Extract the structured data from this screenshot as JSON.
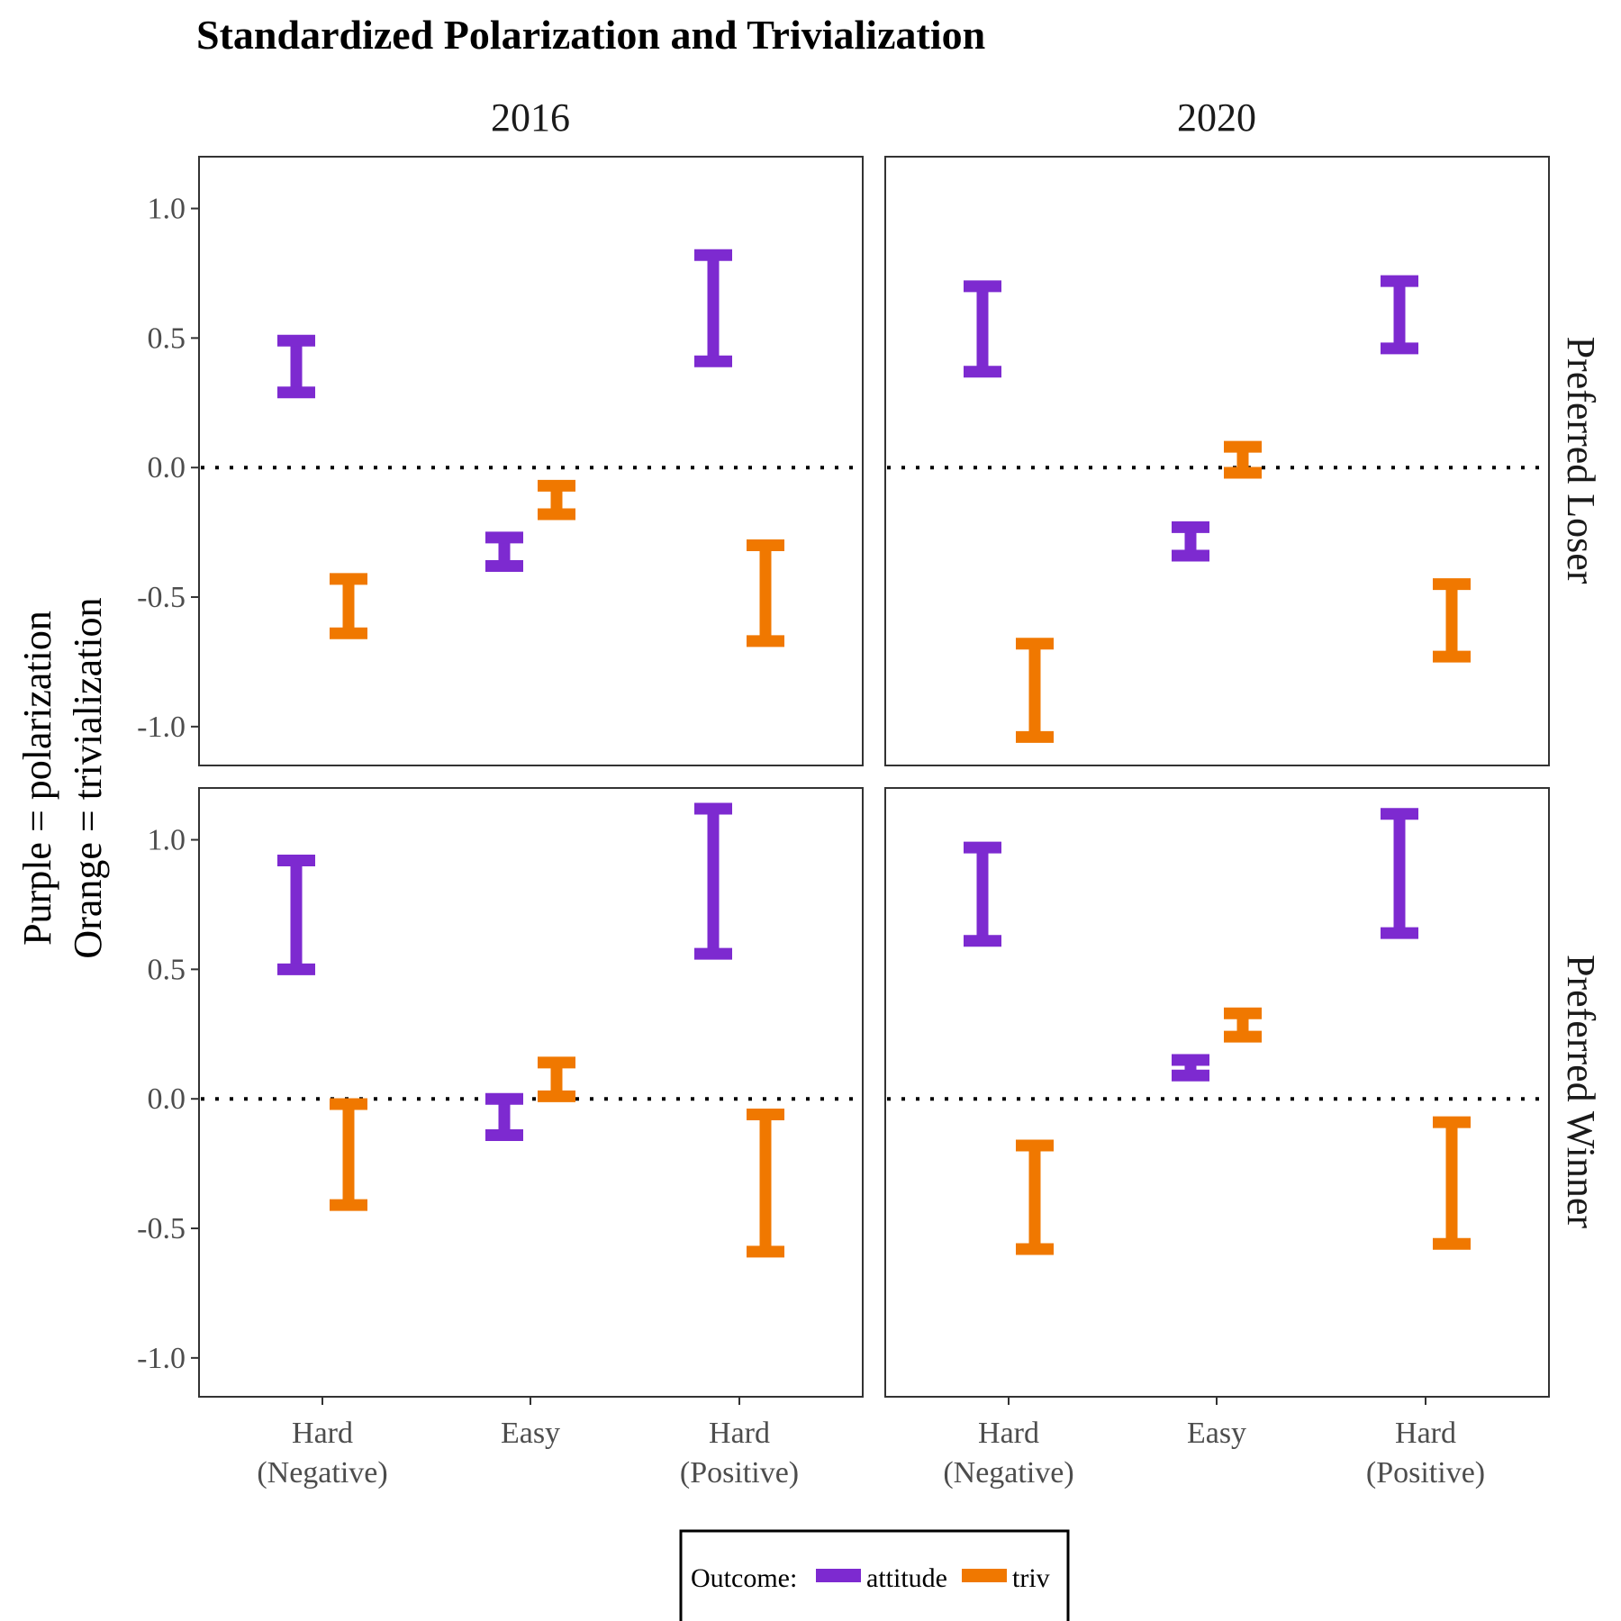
{
  "chart_data": {
    "type": "errorbar",
    "title": "Standardized Polarization and Trivialization",
    "ylabel_lines": [
      "Purple = polarization",
      "Orange = trivialization"
    ],
    "y_ticks": [
      1.0,
      0.5,
      0.0,
      -0.5,
      -1.0
    ],
    "y_tick_labels": [
      "1.0",
      "0.5",
      "0.0",
      "-0.5",
      "-1.0"
    ],
    "ylim": [
      -1.15,
      1.2
    ],
    "reference_line": {
      "y": 0,
      "style": "dotted"
    },
    "columns": [
      "2016",
      "2020"
    ],
    "rows": [
      "Preferred Loser",
      "Preferred Winner"
    ],
    "categories": [
      {
        "line1": "Hard",
        "line2": "(Negative)"
      },
      {
        "line1": "Easy",
        "line2": ""
      },
      {
        "line1": "Hard",
        "line2": "(Positive)"
      }
    ],
    "legend": {
      "title": "Outcome:",
      "items": [
        {
          "name": "attitude",
          "color": "#7d2ad0"
        },
        {
          "name": "triv",
          "color": "#f07800"
        }
      ]
    },
    "panels": [
      {
        "column": "2016",
        "row": "Preferred Loser",
        "series": [
          {
            "name": "attitude",
            "intervals": [
              [
                0.29,
                0.49
              ],
              [
                -0.38,
                -0.27
              ],
              [
                0.41,
                0.82
              ]
            ]
          },
          {
            "name": "triv",
            "intervals": [
              [
                -0.64,
                -0.43
              ],
              [
                -0.18,
                -0.07
              ],
              [
                -0.67,
                -0.3
              ]
            ]
          }
        ]
      },
      {
        "column": "2020",
        "row": "Preferred Loser",
        "series": [
          {
            "name": "attitude",
            "intervals": [
              [
                0.37,
                0.7
              ],
              [
                -0.34,
                -0.23
              ],
              [
                0.46,
                0.72
              ]
            ]
          },
          {
            "name": "triv",
            "intervals": [
              [
                -1.04,
                -0.68
              ],
              [
                -0.02,
                0.08
              ],
              [
                -0.73,
                -0.45
              ]
            ]
          }
        ]
      },
      {
        "column": "2016",
        "row": "Preferred Winner",
        "series": [
          {
            "name": "attitude",
            "intervals": [
              [
                0.5,
                0.92
              ],
              [
                -0.14,
                0.0
              ],
              [
                0.56,
                1.12
              ]
            ]
          },
          {
            "name": "triv",
            "intervals": [
              [
                -0.41,
                -0.02
              ],
              [
                0.01,
                0.14
              ],
              [
                -0.59,
                -0.06
              ]
            ]
          }
        ]
      },
      {
        "column": "2020",
        "row": "Preferred Winner",
        "series": [
          {
            "name": "attitude",
            "intervals": [
              [
                0.61,
                0.97
              ],
              [
                0.09,
                0.15
              ],
              [
                0.64,
                1.1
              ]
            ]
          },
          {
            "name": "triv",
            "intervals": [
              [
                -0.58,
                -0.18
              ],
              [
                0.24,
                0.33
              ],
              [
                -0.56,
                -0.09
              ]
            ]
          }
        ]
      }
    ]
  }
}
